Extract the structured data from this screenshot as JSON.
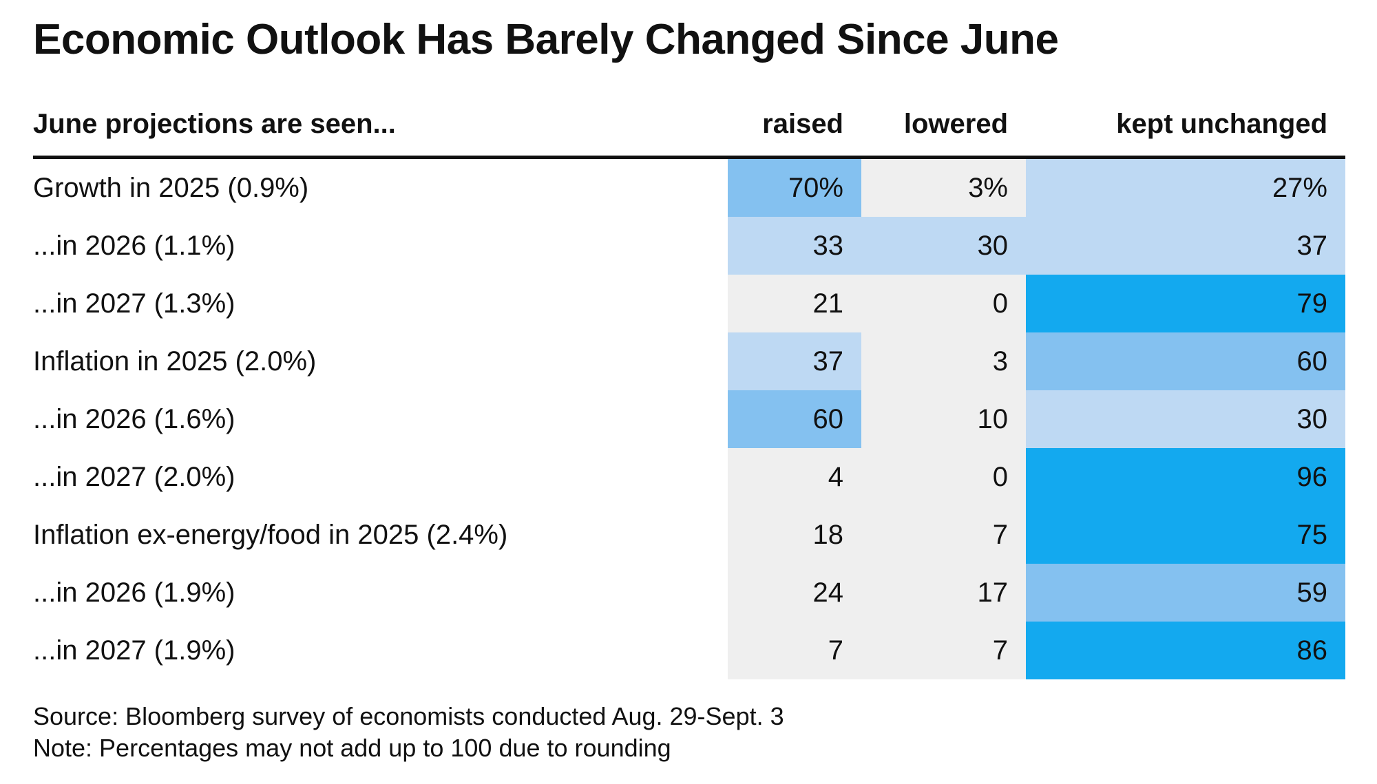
{
  "chart_data": {
    "type": "table",
    "title": "Economic Outlook Has Barely Changed Since June",
    "row_header": "June projections are seen...",
    "columns": [
      "raised",
      "lowered",
      "kept unchanged"
    ],
    "rows": [
      {
        "label": "Growth in 2025 (0.9%)",
        "values": [
          70,
          3,
          27
        ],
        "display": [
          "70%",
          "3%",
          "27%"
        ]
      },
      {
        "label": "...in 2026 (1.1%)",
        "values": [
          33,
          30,
          37
        ],
        "display": [
          "33",
          "30",
          "37"
        ]
      },
      {
        "label": "...in 2027 (1.3%)",
        "values": [
          21,
          0,
          79
        ],
        "display": [
          "21",
          "0",
          "79"
        ]
      },
      {
        "label": "Inflation in 2025 (2.0%)",
        "values": [
          37,
          3,
          60
        ],
        "display": [
          "37",
          "3",
          "60"
        ]
      },
      {
        "label": "...in 2026 (1.6%)",
        "values": [
          60,
          10,
          30
        ],
        "display": [
          "60",
          "10",
          "30"
        ]
      },
      {
        "label": "...in 2027 (2.0%)",
        "values": [
          4,
          0,
          96
        ],
        "display": [
          "4",
          "0",
          "96"
        ]
      },
      {
        "label": "Inflation ex-energy/food in 2025 (2.4%)",
        "values": [
          18,
          7,
          75
        ],
        "display": [
          "18",
          "7",
          "75"
        ]
      },
      {
        "label": "...in 2026 (1.9%)",
        "values": [
          24,
          17,
          59
        ],
        "display": [
          "24",
          "17",
          "59"
        ]
      },
      {
        "label": "...in 2027 (1.9%)",
        "values": [
          7,
          7,
          86
        ],
        "display": [
          "7",
          "7",
          "86"
        ]
      }
    ],
    "color_scale": {
      "low": "#efefef",
      "mid_low": "#bed9f3",
      "mid_high": "#84c1f0",
      "high": "#13a9ef"
    },
    "source": "Source: Bloomberg survey of economists conducted Aug. 29-Sept. 3",
    "note": "Note: Percentages may not add up to 100 due to rounding"
  }
}
